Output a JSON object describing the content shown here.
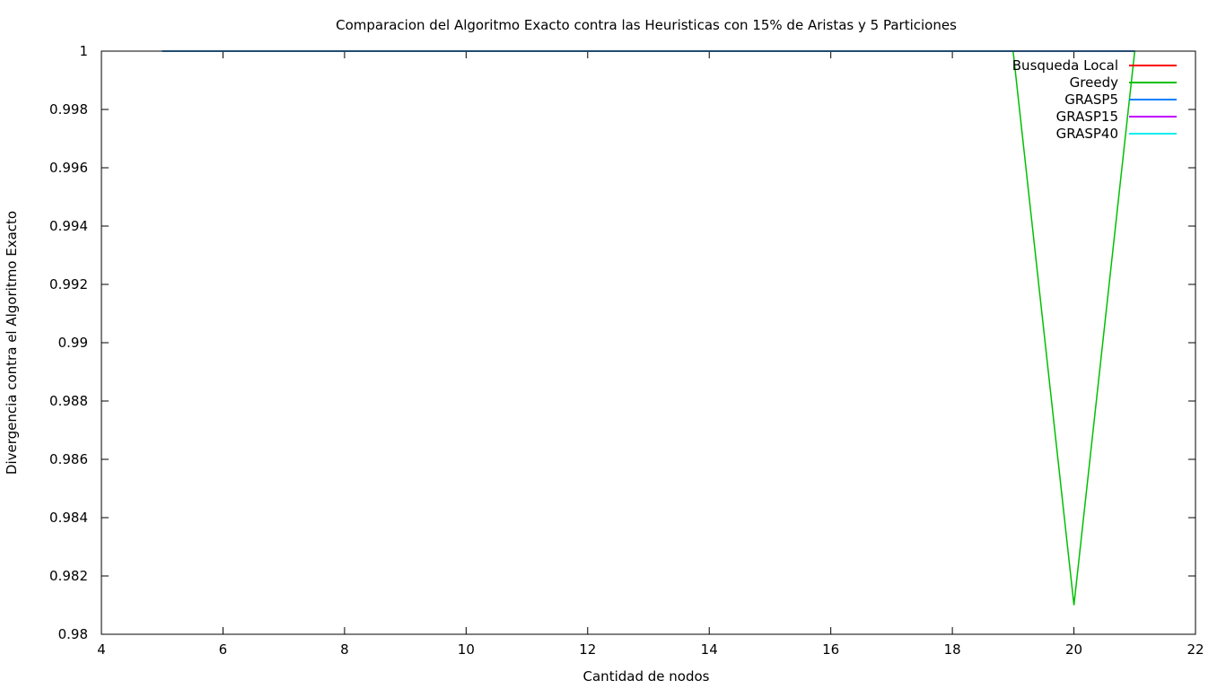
{
  "chart_data": {
    "type": "line",
    "title": "Comparacion del Algoritmo Exacto contra las Heuristicas con 15% de Aristas y 5 Particiones",
    "xlabel": "Cantidad de nodos",
    "ylabel": "Divergencia contra el Algoritmo Exacto",
    "xlim": [
      4,
      22
    ],
    "ylim": [
      0.98,
      1
    ],
    "xticks": [
      4,
      6,
      8,
      10,
      12,
      14,
      16,
      18,
      20,
      22
    ],
    "yticks": [
      0.98,
      0.982,
      0.984,
      0.986,
      0.988,
      0.99,
      0.992,
      0.994,
      0.996,
      0.998,
      1
    ],
    "xtick_labels": [
      "4",
      "6",
      "8",
      "10",
      "12",
      "14",
      "16",
      "18",
      "20",
      "22"
    ],
    "ytick_labels": [
      "0.98",
      "0.982",
      "0.984",
      "0.986",
      "0.988",
      "0.99",
      "0.992",
      "0.994",
      "0.996",
      "0.998",
      "1"
    ],
    "grid": false,
    "legend_position": "top-right",
    "x": [
      5,
      6,
      7,
      8,
      9,
      10,
      11,
      12,
      13,
      14,
      15,
      16,
      17,
      18,
      19,
      20,
      21
    ],
    "series": [
      {
        "name": "Busqueda Local",
        "color": "#ff0000",
        "values": [
          1,
          1,
          1,
          1,
          1,
          1,
          1,
          1,
          1,
          1,
          1,
          1,
          1,
          1,
          1,
          1,
          1
        ]
      },
      {
        "name": "Greedy",
        "color": "#00c000",
        "values": [
          1,
          1,
          1,
          1,
          1,
          1,
          1,
          1,
          1,
          1,
          1,
          1,
          1,
          1,
          1,
          0.981,
          1
        ]
      },
      {
        "name": "GRASP5",
        "color": "#0080ff",
        "values": [
          1,
          1,
          1,
          1,
          1,
          1,
          1,
          1,
          1,
          1,
          1,
          1,
          1,
          1,
          1,
          1,
          1
        ]
      },
      {
        "name": "GRASP15",
        "color": "#c000ff",
        "values": [
          1,
          1,
          1,
          1,
          1,
          1,
          1,
          1,
          1,
          1,
          1,
          1,
          1,
          1,
          1,
          1,
          1
        ]
      },
      {
        "name": "GRASP40",
        "color": "#00eeee",
        "values": [
          1,
          1,
          1,
          1,
          1,
          1,
          1,
          1,
          1,
          1,
          1,
          1,
          1,
          1,
          1,
          1,
          1
        ]
      }
    ]
  }
}
